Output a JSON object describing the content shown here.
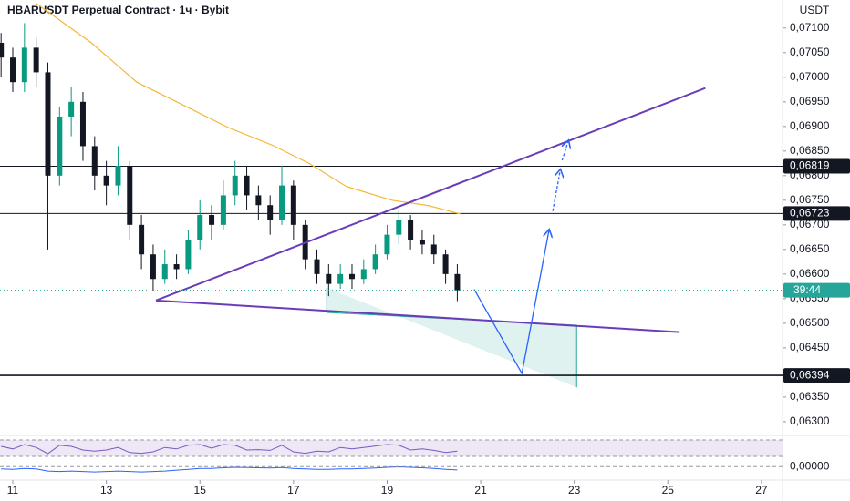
{
  "chart_data": {
    "type": "candlestick",
    "title": "HBARUSDT Perpetual Contract · 1ч · Bybit",
    "currency": "USDT",
    "x": [
      10.75,
      11,
      11.25,
      11.5,
      11.75,
      12,
      12.25,
      12.5,
      12.75,
      13,
      13.25,
      13.5,
      13.75,
      14,
      14.25,
      14.5,
      14.75,
      15,
      15.25,
      15.5,
      15.75,
      16,
      16.25,
      16.5,
      16.75,
      17,
      17.25,
      17.5,
      17.75,
      18,
      18.25,
      18.5,
      18.75,
      19,
      19.25,
      19.5,
      19.75,
      20,
      20.25,
      20.5
    ],
    "open": [
      0.0707,
      0.0704,
      0.0699,
      0.0706,
      0.0701,
      0.068,
      0.0692,
      0.0695,
      0.0686,
      0.068,
      0.0678,
      0.0682,
      0.067,
      0.0664,
      0.0659,
      0.0662,
      0.0661,
      0.0667,
      0.0672,
      0.067,
      0.0676,
      0.068,
      0.0676,
      0.0674,
      0.0671,
      0.0678,
      0.067,
      0.0663,
      0.066,
      0.0658,
      0.066,
      0.0659,
      0.0661,
      0.0664,
      0.0668,
      0.0671,
      0.0667,
      0.0666,
      0.0664,
      0.066
    ],
    "high": [
      0.0709,
      0.0706,
      0.0711,
      0.0708,
      0.0703,
      0.0694,
      0.0698,
      0.0697,
      0.0688,
      0.0683,
      0.0686,
      0.0683,
      0.0672,
      0.0666,
      0.0665,
      0.0664,
      0.0669,
      0.0675,
      0.0674,
      0.0679,
      0.0683,
      0.0682,
      0.0678,
      0.0676,
      0.0682,
      0.0679,
      0.0671,
      0.0665,
      0.0662,
      0.0662,
      0.0662,
      0.0663,
      0.0666,
      0.067,
      0.0673,
      0.0672,
      0.0669,
      0.0668,
      0.0665,
      0.0662
    ],
    "low": [
      0.07,
      0.0697,
      0.0697,
      0.0698,
      0.0665,
      0.0678,
      0.0688,
      0.0683,
      0.0677,
      0.0674,
      0.0676,
      0.0667,
      0.0661,
      0.06565,
      0.0658,
      0.0659,
      0.066,
      0.0665,
      0.0667,
      0.0669,
      0.0674,
      0.0673,
      0.0671,
      0.0668,
      0.067,
      0.0667,
      0.0661,
      0.0658,
      0.06555,
      0.0657,
      0.0657,
      0.0658,
      0.066,
      0.0663,
      0.0666,
      0.0665,
      0.0664,
      0.0662,
      0.0658,
      0.06545
    ],
    "close": [
      0.0704,
      0.0699,
      0.0706,
      0.0701,
      0.068,
      0.0692,
      0.0695,
      0.0686,
      0.068,
      0.0678,
      0.0682,
      0.067,
      0.0664,
      0.0659,
      0.0662,
      0.0661,
      0.0667,
      0.0672,
      0.067,
      0.0676,
      0.068,
      0.0676,
      0.0674,
      0.0671,
      0.0678,
      0.067,
      0.0663,
      0.066,
      0.0658,
      0.066,
      0.0659,
      0.0661,
      0.0664,
      0.0668,
      0.0671,
      0.0667,
      0.0666,
      0.0664,
      0.066,
      0.06567
    ],
    "up_color": "#089981",
    "down_color": "#131722",
    "xlim": [
      10.727,
      27.45
    ],
    "ylim": [
      0.06272,
      0.07157
    ],
    "xticks": [
      11,
      13,
      15,
      17,
      19,
      21,
      23,
      25,
      27
    ],
    "yticks": [
      {
        "value": 0.071,
        "label": "0,07100"
      },
      {
        "value": 0.0705,
        "label": "0,07050"
      },
      {
        "value": 0.07,
        "label": "0,07000"
      },
      {
        "value": 0.0695,
        "label": "0,06950"
      },
      {
        "value": 0.069,
        "label": "0,06900"
      },
      {
        "value": 0.0685,
        "label": "0,06850"
      },
      {
        "value": 0.068,
        "label": "0,06800"
      },
      {
        "value": 0.0675,
        "label": "0,06750"
      },
      {
        "value": 0.067,
        "label": "0,06700"
      },
      {
        "value": 0.0665,
        "label": "0,06650"
      },
      {
        "value": 0.066,
        "label": "0,06600"
      },
      {
        "value": 0.0655,
        "label": "0,06550"
      },
      {
        "value": 0.065,
        "label": "0,06500"
      },
      {
        "value": 0.0645,
        "label": "0,06450"
      },
      {
        "value": 0.0635,
        "label": "0,06350"
      },
      {
        "value": 0.063,
        "label": "0,06300"
      }
    ],
    "ma": {
      "color": "#f5b638",
      "x": [
        11.5,
        12.68,
        13.65,
        14.63,
        15.6,
        16.57,
        17.35,
        18.13,
        19.1,
        19.89,
        20.57
      ],
      "values": [
        0.0715,
        0.0707,
        0.0699,
        0.06944,
        0.06898,
        0.06861,
        0.06824,
        0.06778,
        0.0675,
        0.06739,
        0.06722
      ]
    },
    "levels": [
      {
        "value": 0.06819,
        "label": "0,06819"
      },
      {
        "value": 0.06723,
        "label": "0,06723"
      },
      {
        "value": 0.06394,
        "label": "0,06394"
      }
    ],
    "countdown": "39:44",
    "countdown_color": "#26a69a",
    "trendlines": [
      {
        "color": "#6a3db8",
        "x": [
          14.06,
          25.8
        ],
        "y": [
          0.065463,
          0.06978
        ]
      },
      {
        "color": "#6a3db8",
        "x": [
          14.06,
          25.25
        ],
        "y": [
          0.065463,
          0.06482
        ]
      }
    ],
    "projection": {
      "color": "#26a69a",
      "x": [
        17.71,
        17.71,
        23.05,
        23.05
      ],
      "y": [
        0.06572,
        0.06522,
        0.06496,
        0.0637
      ]
    },
    "path_arrow": {
      "color": "#2962ff",
      "x": [
        20.86,
        21.88,
        22.46
      ],
      "y": [
        0.06569,
        0.06398,
        0.06689
      ]
    },
    "dashed_arrows": [
      {
        "color": "#2962ff",
        "x": [
          22.54,
          22.7
        ],
        "y": [
          0.06728,
          0.06811
        ]
      },
      {
        "color": "#2962ff",
        "x": [
          22.74,
          22.87
        ],
        "y": [
          0.06831,
          0.0687
        ]
      }
    ],
    "rsi": {
      "color": "#7e57c2",
      "ylim": [
        20,
        80
      ],
      "values": [
        55,
        48,
        60,
        52,
        35,
        58,
        55,
        45,
        42,
        45,
        52,
        38,
        36,
        40,
        52,
        48,
        58,
        60,
        50,
        60,
        58,
        45,
        46,
        44,
        58,
        40,
        36,
        42,
        40,
        52,
        48,
        52,
        56,
        60,
        58,
        45,
        48,
        44,
        38,
        42
      ]
    },
    "macd": {
      "color": "#2962ff",
      "ylim": [
        -0.0004,
        0.0003
      ],
      "yticks": [
        {
          "value": 0,
          "label": "0,00000"
        }
      ],
      "values": [
        -0.0001,
        -0.00012,
        -8e-05,
        -0.0001,
        -0.0002,
        -0.00022,
        -0.0002,
        -0.00022,
        -0.00024,
        -0.00022,
        -0.0002,
        -0.00022,
        -0.00024,
        -0.00022,
        -0.0002,
        -0.00016,
        -0.00012,
        -8e-05,
        -8e-05,
        -5e-05,
        -3e-05,
        -4e-05,
        -5e-05,
        -6e-05,
        -4e-05,
        -8e-05,
        -0.0001,
        -0.00012,
        -0.00012,
        -0.0001,
        -0.0001,
        -8e-05,
        -6e-05,
        -3e-05,
        -1e-05,
        -3e-05,
        -5e-05,
        -8e-05,
        -0.00012,
        -0.00015
      ]
    }
  }
}
